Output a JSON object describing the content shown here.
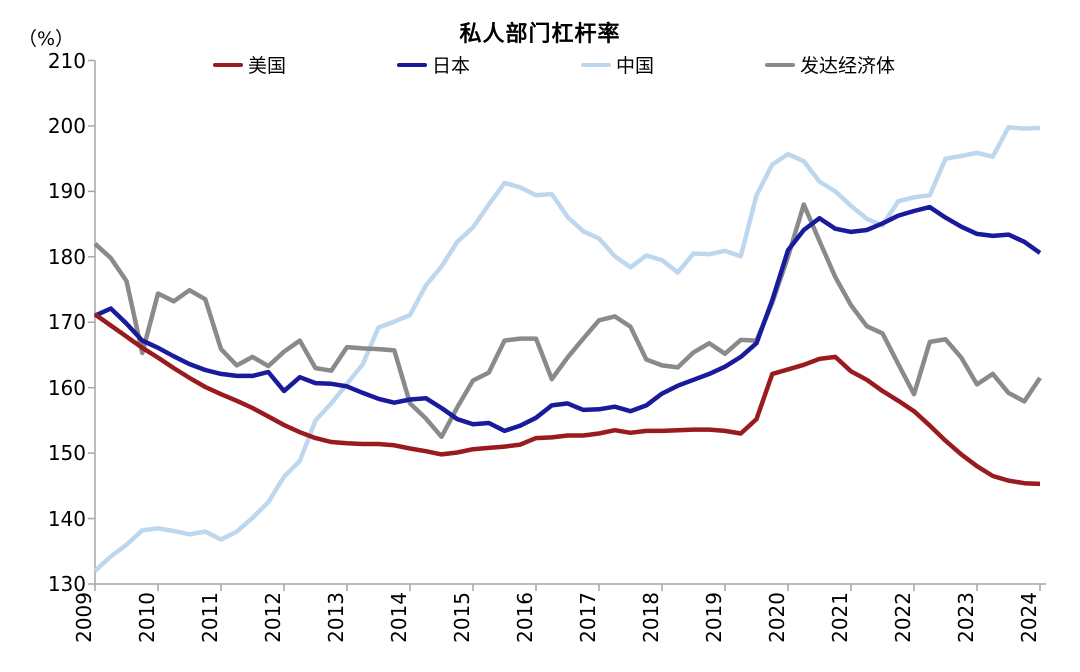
{
  "chart_data": {
    "type": "line",
    "title": "私人部门杠杆率",
    "unit_label": "（%）",
    "x_tick_labels": [
      "2009",
      "2010",
      "2011",
      "2012",
      "2013",
      "2014",
      "2015",
      "2016",
      "2017",
      "2018",
      "2019",
      "2020",
      "2021",
      "2022",
      "2023",
      "2024"
    ],
    "x_start": "2009Q1",
    "x_step": "quarter",
    "points_per_year": 4,
    "ylim": [
      130,
      210
    ],
    "y_tick_step": 10,
    "grid": false,
    "legend_position": "top-center",
    "series": [
      {
        "name": "美国",
        "color": "#9A1B1E",
        "values": [
          171.2,
          169.5,
          167.8,
          166.1,
          164.6,
          163.0,
          161.5,
          160.1,
          159.0,
          158.0,
          156.9,
          155.6,
          154.3,
          153.2,
          152.3,
          151.7,
          151.5,
          151.4,
          151.4,
          151.2,
          150.7,
          150.3,
          149.8,
          150.1,
          150.6,
          150.8,
          151.0,
          151.3,
          152.3,
          152.4,
          152.7,
          152.7,
          153.0,
          153.5,
          153.1,
          153.4,
          153.4,
          153.5,
          153.6,
          153.6,
          153.4,
          153.0,
          155.2,
          162.1,
          162.8,
          163.5,
          164.4,
          164.7,
          162.5,
          161.2,
          159.5,
          158.0,
          156.4,
          154.2,
          151.9,
          149.8,
          148.0,
          146.5,
          145.8,
          145.4,
          145.3
        ]
      },
      {
        "name": "日本",
        "color": "#1A1A9C",
        "values": [
          171.0,
          172.1,
          169.8,
          167.2,
          166.1,
          164.8,
          163.6,
          162.7,
          162.1,
          161.8,
          161.8,
          162.4,
          159.5,
          161.6,
          160.7,
          160.6,
          160.2,
          159.2,
          158.3,
          157.7,
          158.2,
          158.4,
          156.9,
          155.2,
          154.4,
          154.6,
          153.4,
          154.2,
          155.4,
          157.3,
          157.6,
          156.6,
          156.7,
          157.1,
          156.4,
          157.3,
          159.1,
          160.3,
          161.2,
          162.1,
          163.2,
          164.7,
          166.8,
          173.4,
          181.0,
          184.1,
          185.9,
          184.3,
          183.8,
          184.1,
          185.1,
          186.3,
          187.0,
          187.6,
          186.0,
          184.6,
          183.5,
          183.2,
          183.4,
          182.3,
          180.6
        ]
      },
      {
        "name": "中国",
        "color": "#BDD7EE",
        "values": [
          132.0,
          134.2,
          136.0,
          138.2,
          138.5,
          138.1,
          137.6,
          138.0,
          136.8,
          138.0,
          140.1,
          142.5,
          146.4,
          148.8,
          155.0,
          157.6,
          160.6,
          163.6,
          169.2,
          170.1,
          171.1,
          175.6,
          178.5,
          182.3,
          184.5,
          188.0,
          191.3,
          190.6,
          189.4,
          189.6,
          186.1,
          183.9,
          182.8,
          180.1,
          178.4,
          180.2,
          179.5,
          177.6,
          180.5,
          180.4,
          180.9,
          180.1,
          189.4,
          194.1,
          195.7,
          194.6,
          191.5,
          190.0,
          187.8,
          185.8,
          184.8,
          188.5,
          189.1,
          189.4,
          195.0,
          195.4,
          195.9,
          195.3,
          199.8,
          199.6,
          199.7
        ]
      },
      {
        "name": "发达经济体",
        "color": "#8A8A8A",
        "values": [
          182.0,
          179.8,
          176.3,
          165.3,
          174.4,
          173.2,
          174.9,
          173.5,
          165.9,
          163.4,
          164.7,
          163.3,
          165.5,
          167.2,
          163.0,
          162.6,
          166.2,
          166.0,
          165.9,
          165.7,
          157.6,
          155.3,
          152.5,
          157.0,
          161.1,
          162.3,
          167.2,
          167.5,
          167.5,
          161.3,
          164.6,
          167.5,
          170.3,
          170.9,
          169.3,
          164.3,
          163.4,
          163.1,
          165.4,
          166.8,
          165.2,
          167.3,
          167.2,
          173.0,
          180.0,
          188.0,
          182.4,
          176.9,
          172.6,
          169.4,
          168.3,
          163.6,
          159.0,
          167.0,
          167.4,
          164.6,
          160.5,
          162.1,
          159.2,
          157.9,
          161.5
        ]
      }
    ]
  }
}
